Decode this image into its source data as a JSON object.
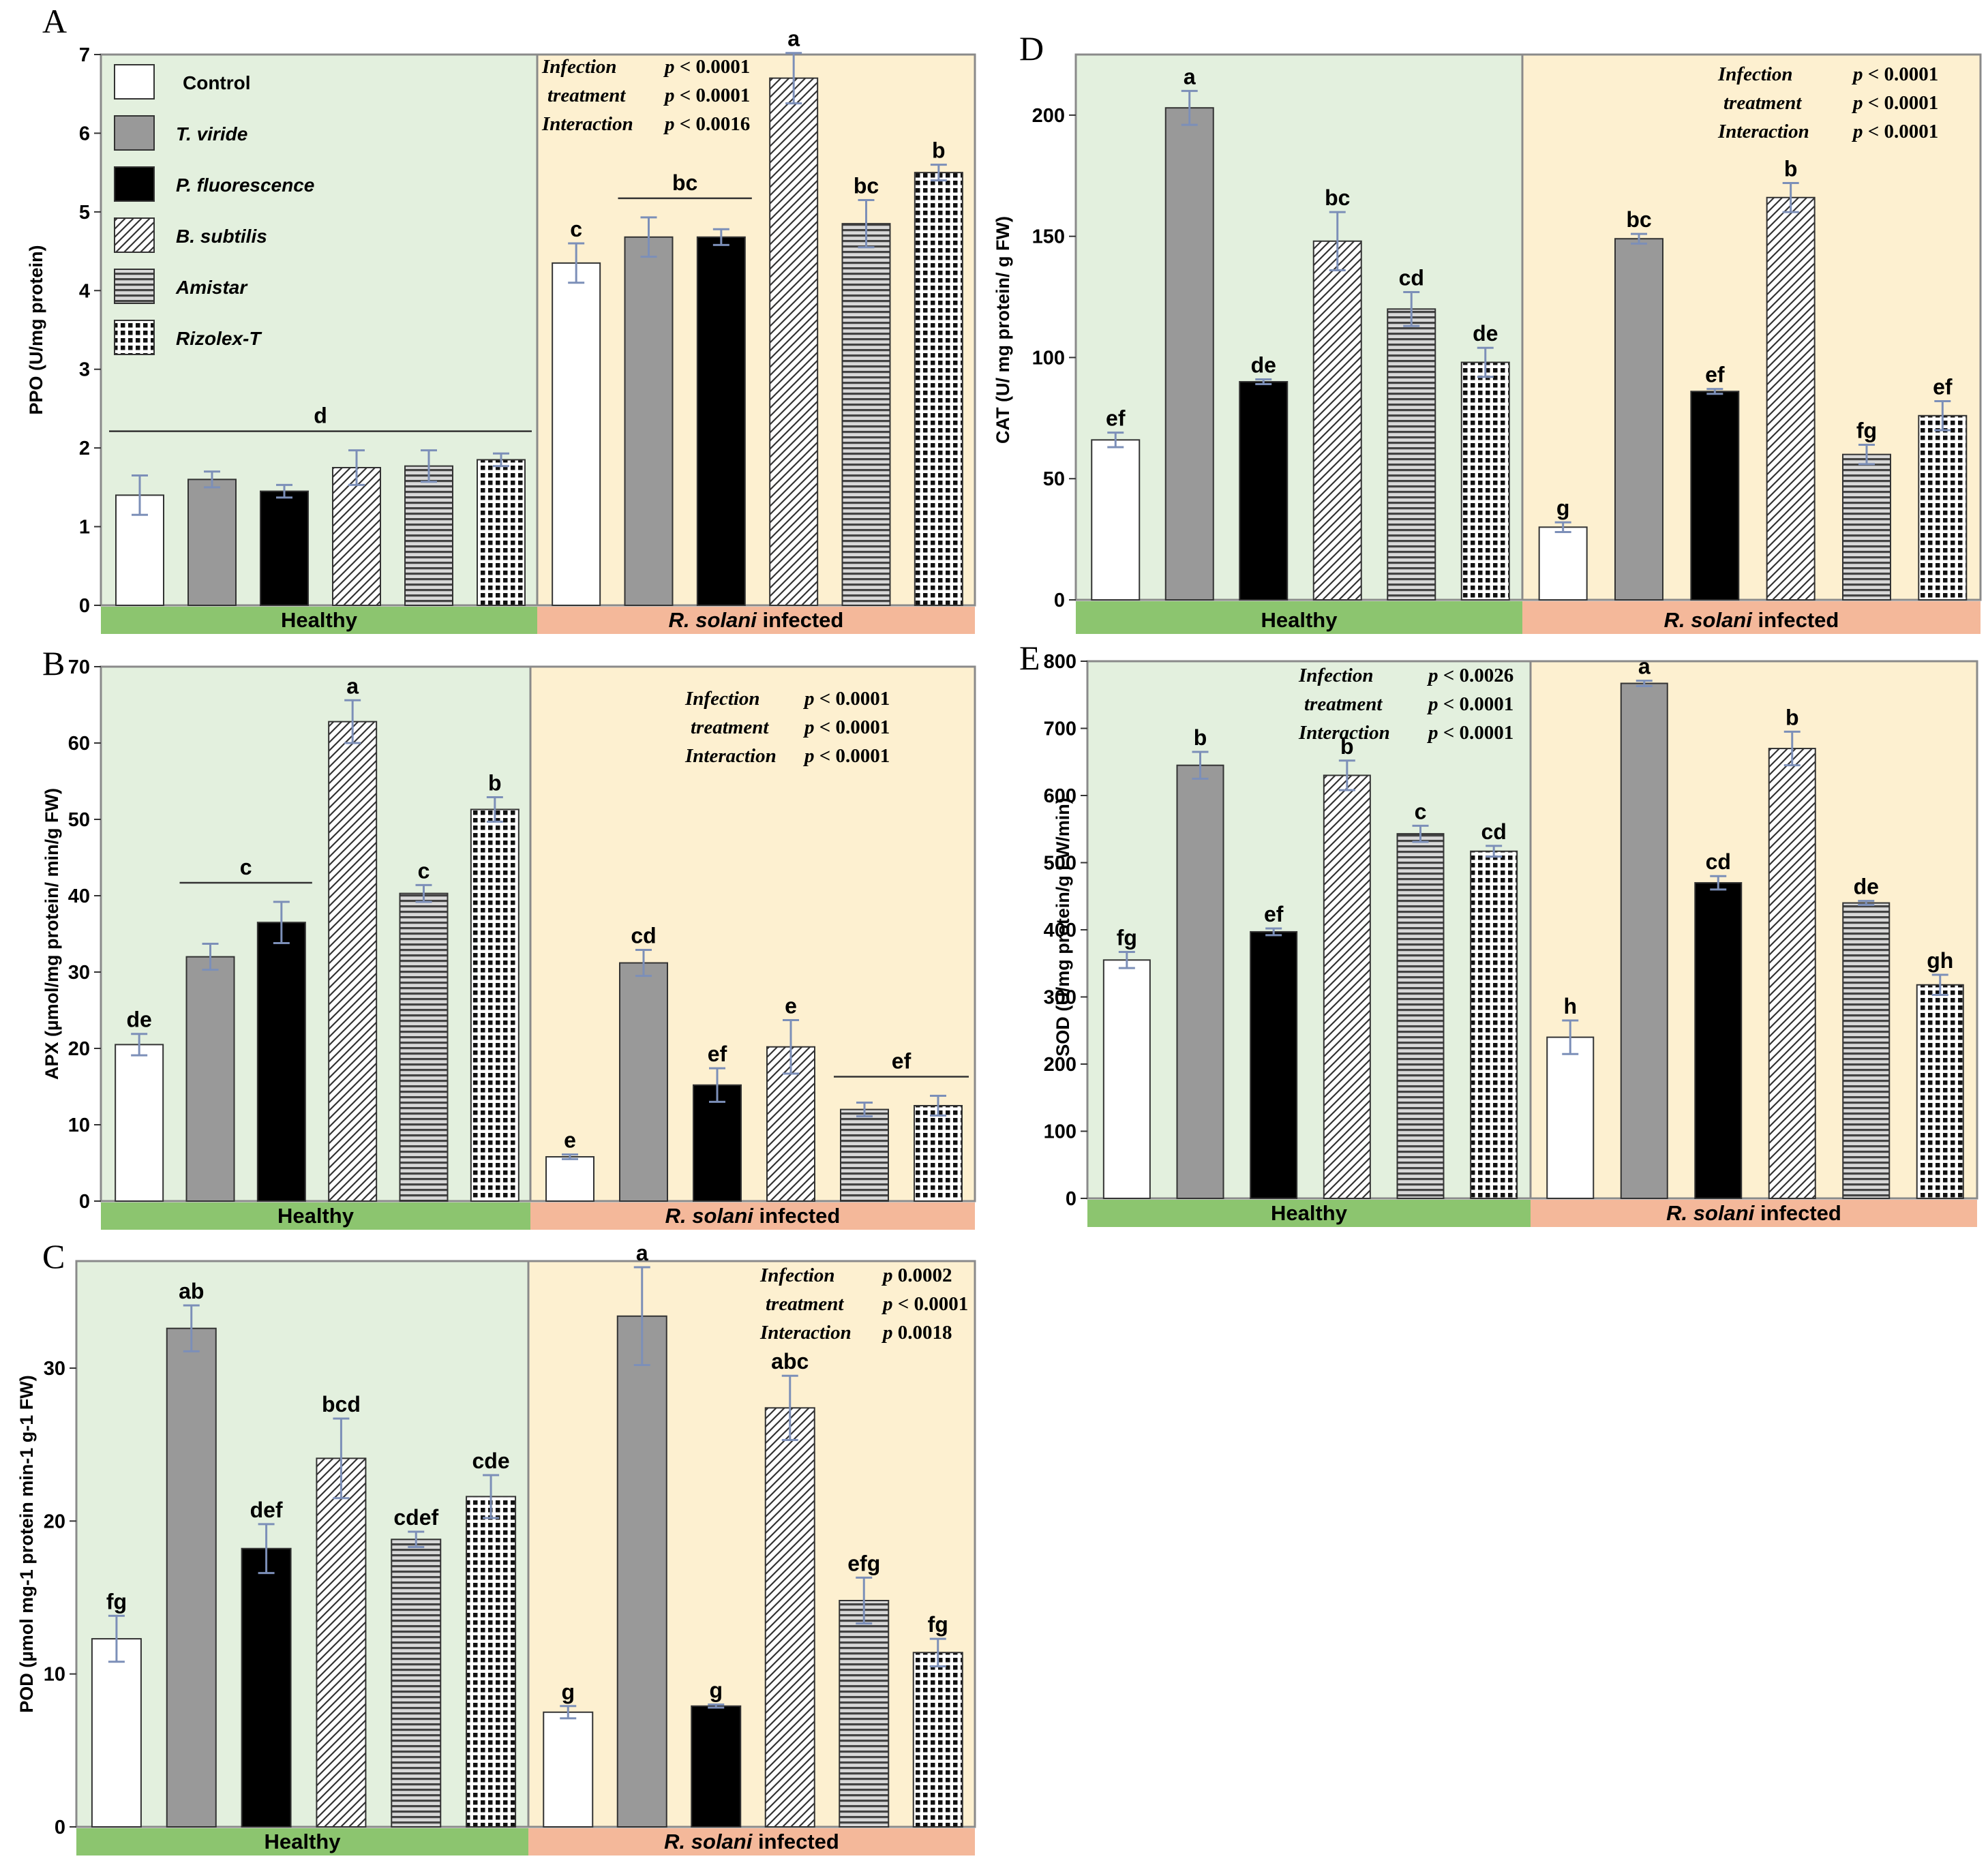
{
  "legend": [
    {
      "label": "Control",
      "pattern": "white"
    },
    {
      "label": "T. viride",
      "pattern": "gray"
    },
    {
      "label": "P. fluorescence",
      "pattern": "black"
    },
    {
      "label": "B. subtilis",
      "pattern": "diag"
    },
    {
      "label": "Amistar",
      "pattern": "hlines"
    },
    {
      "label": "Rizolex-T",
      "pattern": "dots"
    }
  ],
  "groups": [
    "Healthy",
    "R. solani infected"
  ],
  "colors": {
    "healthy_bg": "#e3f0de",
    "infected_bg": "#fdf0d0",
    "healthy_strip": "#8cc56f",
    "infected_strip": "#f4b89a",
    "gray_bar": "#999999",
    "error_bar": "#7c8fb8"
  },
  "chart_data": [
    {
      "panel": "A",
      "type": "bar",
      "ylabel": "PPO (U/mg protein)",
      "ylim": [
        0,
        7
      ],
      "yticks": [
        0,
        1,
        2,
        3,
        4,
        5,
        6,
        7
      ],
      "stats": [
        [
          "Infection",
          "p < 0.0001"
        ],
        [
          "treatment",
          "p < 0.0001"
        ],
        [
          "Interaction",
          "p < 0.0016"
        ]
      ],
      "healthy": {
        "values": [
          1.4,
          1.6,
          1.45,
          1.75,
          1.77,
          1.85
        ],
        "errors": [
          0.25,
          0.1,
          0.08,
          0.22,
          0.2,
          0.08
        ],
        "letters": [
          "",
          "",
          "",
          "",
          "",
          ""
        ]
      },
      "infected": {
        "values": [
          4.35,
          4.68,
          4.68,
          6.7,
          4.85,
          5.5
        ],
        "errors": [
          0.25,
          0.25,
          0.1,
          0.32,
          0.3,
          0.1
        ],
        "letters": [
          "c",
          "",
          "",
          "a",
          "bc",
          "b"
        ]
      },
      "group_labels": [
        {
          "text": "d",
          "side": "healthy",
          "from": 0,
          "to": 5
        },
        {
          "text": "bc",
          "side": "infected",
          "from": 1,
          "to": 2
        }
      ]
    },
    {
      "panel": "B",
      "type": "bar",
      "ylabel": "APX (µmol/mg protein/ min/g FW)",
      "ylim": [
        0,
        70
      ],
      "yticks": [
        0,
        10,
        20,
        30,
        40,
        50,
        60,
        70
      ],
      "stats": [
        [
          "Infection",
          "p < 0.0001"
        ],
        [
          "treatment",
          "p < 0.0001"
        ],
        [
          "Interaction",
          "p < 0.0001"
        ]
      ],
      "healthy": {
        "values": [
          20.5,
          32,
          36.5,
          62.8,
          40.3,
          51.3
        ],
        "errors": [
          1.4,
          1.7,
          2.7,
          2.8,
          1.1,
          1.6
        ],
        "letters": [
          "de",
          "",
          "",
          "a",
          "c",
          "b"
        ]
      },
      "infected": {
        "values": [
          5.8,
          31.2,
          15.2,
          20.2,
          12,
          12.5
        ],
        "errors": [
          0.3,
          1.7,
          2.2,
          3.5,
          0.9,
          1.3
        ],
        "letters": [
          "e",
          "cd",
          "ef",
          "e",
          "",
          ""
        ]
      },
      "group_labels": [
        {
          "text": "c",
          "side": "healthy",
          "from": 1,
          "to": 2
        },
        {
          "text": "ef",
          "side": "infected",
          "from": 4,
          "to": 5
        }
      ]
    },
    {
      "panel": "C",
      "type": "bar",
      "ylabel": "POD (µmol mg-1 protein min-1 g-1 FW)",
      "ylim": [
        0,
        37
      ],
      "yticks": [
        0,
        10,
        20,
        30
      ],
      "stats": [
        [
          "Infection",
          "p   0.0002"
        ],
        [
          "treatment",
          "p < 0.0001"
        ],
        [
          "Interaction",
          "p   0.0018"
        ]
      ],
      "healthy": {
        "values": [
          12.3,
          32.6,
          18.2,
          24.1,
          18.8,
          21.6
        ],
        "errors": [
          1.5,
          1.5,
          1.6,
          2.6,
          0.5,
          1.4
        ],
        "letters": [
          "fg",
          "ab",
          "def",
          "bcd",
          "cdef",
          "cde"
        ]
      },
      "infected": {
        "values": [
          7.5,
          33.4,
          7.9,
          27.4,
          14.8,
          11.4
        ],
        "errors": [
          0.4,
          3.2,
          0.1,
          2.1,
          1.5,
          0.9
        ],
        "letters": [
          "g",
          "a",
          "g",
          "abc",
          "efg",
          "fg"
        ]
      },
      "group_labels": []
    },
    {
      "panel": "D",
      "type": "bar",
      "ylabel": "CAT (U/ mg protein/ g FW)",
      "ylim": [
        0,
        225
      ],
      "yticks": [
        0,
        50,
        100,
        150,
        200
      ],
      "stats": [
        [
          "Infection",
          "p < 0.0001"
        ],
        [
          "treatment",
          "p < 0.0001"
        ],
        [
          "Interaction",
          "p < 0.0001"
        ]
      ],
      "healthy": {
        "values": [
          66,
          203,
          90,
          148,
          120,
          98
        ],
        "errors": [
          3,
          7,
          1,
          12,
          7,
          6
        ],
        "letters": [
          "ef",
          "a",
          "de",
          "bc",
          "cd",
          "de"
        ]
      },
      "infected": {
        "values": [
          30,
          149,
          86,
          166,
          60,
          76
        ],
        "errors": [
          2,
          2,
          1,
          6,
          4,
          6
        ],
        "letters": [
          "g",
          "bc",
          "ef",
          "b",
          "fg",
          "ef"
        ]
      },
      "group_labels": []
    },
    {
      "panel": "E",
      "type": "bar",
      "ylabel": "SOD (U/mg protein/g  FW/min)",
      "ylim": [
        0,
        800
      ],
      "yticks": [
        0,
        100,
        200,
        300,
        400,
        500,
        600,
        700,
        800
      ],
      "stats": [
        [
          "Infection",
          "p < 0.0026"
        ],
        [
          "treatment",
          "p < 0.0001"
        ],
        [
          "Interaction",
          "p < 0.0001"
        ]
      ],
      "healthy": {
        "values": [
          355,
          645,
          397,
          630,
          543,
          517
        ],
        "errors": [
          12,
          20,
          5,
          22,
          12,
          8
        ],
        "letters": [
          "fg",
          "b",
          "ef",
          "b",
          "c",
          "cd"
        ]
      },
      "infected": {
        "values": [
          240,
          767,
          470,
          670,
          440,
          318
        ],
        "errors": [
          25,
          4,
          10,
          25,
          3,
          15
        ],
        "letters": [
          "h",
          "a",
          "cd",
          "b",
          "de",
          "gh"
        ]
      },
      "group_labels": []
    }
  ]
}
